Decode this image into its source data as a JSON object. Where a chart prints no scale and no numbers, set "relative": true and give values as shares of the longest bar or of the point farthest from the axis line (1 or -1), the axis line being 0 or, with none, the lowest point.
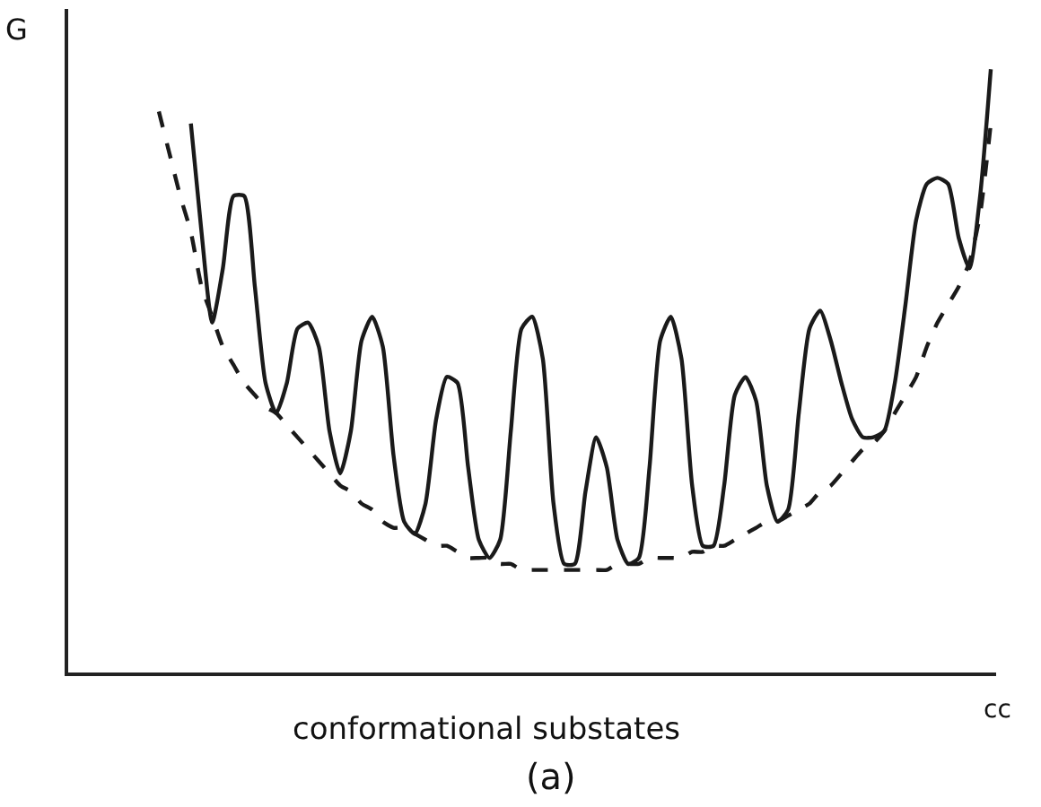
{
  "chart_data": {
    "type": "line",
    "relative": true,
    "xlabel": "cc",
    "ylabel": "G",
    "categories": [
      null,
      null,
      null,
      null,
      null,
      null,
      null,
      null,
      null,
      null,
      null,
      null,
      null,
      null,
      null,
      null,
      null,
      null,
      null,
      null,
      null,
      null,
      null,
      null,
      null,
      null,
      null,
      null,
      null,
      null,
      null,
      null,
      null,
      null,
      null,
      null,
      null,
      null,
      null,
      null,
      null,
      null,
      null,
      null,
      null,
      null,
      null,
      null,
      null,
      null,
      null,
      null,
      null,
      null,
      null,
      null,
      null,
      null,
      null,
      null,
      null,
      null,
      null,
      null,
      null,
      null,
      null,
      null,
      null,
      null,
      null,
      null,
      null,
      null,
      null,
      null,
      null,
      null,
      null
    ],
    "series": [
      {
        "color": "#1a1a1a",
        "line_style": "solid",
        "values": [
          null,
          null,
          null,
          0.91,
          0.73,
          0.58,
          0.67,
          0.79,
          0.79,
          0.64,
          0.48,
          0.43,
          0.48,
          0.57,
          0.58,
          0.54,
          0.4,
          0.33,
          0.4,
          0.55,
          0.59,
          0.54,
          0.36,
          0.25,
          0.23,
          0.28,
          0.42,
          0.49,
          0.48,
          0.34,
          0.22,
          0.19,
          0.22,
          0.4,
          0.57,
          0.59,
          0.52,
          0.28,
          0.18,
          0.18,
          0.3,
          0.39,
          0.34,
          0.22,
          0.18,
          0.19,
          0.34,
          0.55,
          0.59,
          0.52,
          0.31,
          0.21,
          0.21,
          0.31,
          0.46,
          0.49,
          0.45,
          0.31,
          0.25,
          0.27,
          0.43,
          0.57,
          0.6,
          0.55,
          0.48,
          0.42,
          0.39,
          0.39,
          0.4,
          0.48,
          0.61,
          0.75,
          0.81,
          0.82,
          0.81,
          0.72,
          0.67,
          0.79,
          1.0
        ]
      },
      {
        "color": "#1a1a1a",
        "line_style": "dashed",
        "values": [
          0.93,
          0.86,
          0.79,
          0.73,
          0.64,
          0.59,
          0.54,
          0.51,
          0.48,
          0.46,
          0.44,
          0.43,
          0.41,
          0.39,
          0.37,
          0.35,
          0.33,
          0.31,
          0.3,
          0.28,
          0.27,
          0.25,
          0.24,
          0.24,
          0.23,
          0.22,
          0.21,
          0.21,
          0.2,
          0.19,
          0.19,
          0.19,
          0.18,
          0.18,
          0.17,
          0.17,
          0.17,
          0.17,
          0.17,
          0.17,
          0.17,
          0.17,
          0.17,
          0.18,
          0.18,
          0.18,
          0.19,
          0.19,
          0.19,
          0.19,
          0.2,
          0.2,
          0.21,
          0.21,
          0.22,
          0.23,
          0.24,
          0.25,
          0.25,
          0.26,
          0.27,
          0.28,
          0.3,
          0.31,
          0.33,
          0.35,
          0.37,
          0.38,
          0.4,
          0.43,
          0.46,
          0.49,
          0.54,
          0.58,
          0.61,
          0.64,
          0.68,
          0.76,
          0.91
        ]
      }
    ],
    "annotations": [
      "conformational substates",
      "(a)"
    ],
    "marker": "none"
  }
}
